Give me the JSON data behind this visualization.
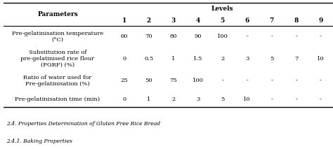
{
  "title_levels": "Levels",
  "col_header": [
    "1",
    "2",
    "3",
    "4",
    "5",
    "6",
    "7",
    "8",
    "9"
  ],
  "row_labels": [
    "Pre-gelatinisation temperature\n(°C)",
    "Substitution rate of\npre-gelatinised rice flour\n(PGRF) (%)",
    "Ratio of water used for\nPre-gelatinisation (%)",
    "Pre-gelatinisation time (min)"
  ],
  "table_data": [
    [
      "60",
      "70",
      "80",
      "90",
      "100",
      "-",
      "-",
      "-",
      "-"
    ],
    [
      "0",
      "0.5",
      "1",
      "1.5",
      "2",
      "3",
      "5",
      "7",
      "10"
    ],
    [
      "25",
      "50",
      "75",
      "100",
      "-",
      "-",
      "-",
      "-",
      "-"
    ],
    [
      "0",
      "1",
      "2",
      "3",
      "5",
      "10",
      "-",
      "-",
      "-"
    ]
  ],
  "footer_lines": [
    "2.4. Properties Determination of Gluten Free Rice Bread",
    "2.4.1. Baking Properties"
  ],
  "background_color": "#ffffff",
  "text_color": "#000000",
  "figsize": [
    4.74,
    2.13
  ],
  "dpi": 100
}
